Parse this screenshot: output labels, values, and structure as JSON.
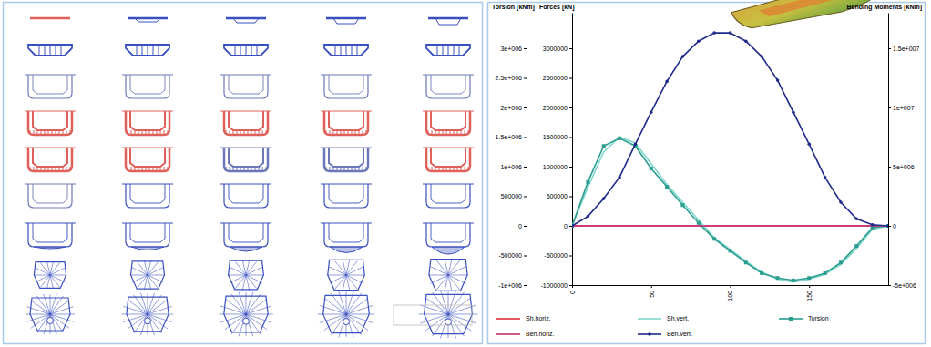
{
  "chart_data": {
    "type": "line",
    "y_label": "Torsion [kNm]",
    "y3_label": "Forces [kN]",
    "y2_label": "Bending Moments [kNm]",
    "x": [
      0,
      10,
      20,
      30,
      40,
      50,
      60,
      70,
      80,
      90,
      100,
      110,
      120,
      130,
      140,
      150,
      160,
      170,
      180,
      190,
      200
    ],
    "xlim": [
      0,
      200
    ],
    "xticks": [
      0,
      50,
      100,
      150
    ],
    "ylim": [
      -1000000,
      3600000
    ],
    "yticks": [
      {
        "value": -1000000,
        "label": "-1e+006"
      },
      -500000,
      0,
      500000,
      {
        "value": 1000000,
        "label": "1e+006"
      },
      {
        "value": 1500000,
        "label": "1.5e+006"
      },
      {
        "value": 2000000,
        "label": "2e+006"
      },
      {
        "value": 2500000,
        "label": "2.5e+006"
      },
      {
        "value": 3000000,
        "label": "3e+006"
      }
    ],
    "y3lim": [
      -1000000,
      3600000
    ],
    "y3ticks": [
      -1000000,
      -500000,
      0,
      500000,
      1000000,
      1500000,
      2000000,
      2500000,
      3000000
    ],
    "y2lim": [
      -5000000,
      18000000
    ],
    "y2ticks": [
      {
        "value": -5000000,
        "label": "-5e+006"
      },
      0,
      {
        "value": 5000000,
        "label": "5e+006"
      },
      {
        "value": 10000000,
        "label": "1e+007"
      },
      {
        "value": 15000000,
        "label": "1.5e+007"
      }
    ],
    "series": [
      {
        "name": "Sh.horiz.",
        "color": "#e0303a",
        "axis": "y3",
        "line_style": "solid",
        "values": [
          0,
          0,
          0,
          0,
          0,
          0,
          0,
          0,
          0,
          0,
          0,
          0,
          0,
          0,
          0,
          0,
          0,
          0,
          0,
          0,
          0
        ]
      },
      {
        "name": "Sh.vert.",
        "color": "#7fd6cc",
        "axis": "y3",
        "line_style": "solid",
        "values": [
          0,
          650000,
          1250000,
          1500000,
          1400000,
          1050000,
          700000,
          400000,
          100000,
          -200000,
          -400000,
          -600000,
          -780000,
          -900000,
          -950000,
          -900000,
          -820000,
          -650000,
          -380000,
          -60000,
          0
        ]
      },
      {
        "name": "Torsion",
        "color": "#2a9d8f",
        "line_style": "solid",
        "marker": "square",
        "values": [
          0,
          740000,
          1350000,
          1480000,
          1350000,
          970000,
          660000,
          350000,
          50000,
          -220000,
          -420000,
          -620000,
          -800000,
          -880000,
          -920000,
          -880000,
          -800000,
          -620000,
          -340000,
          -30000,
          0
        ]
      },
      {
        "name": "Ben.horiz.",
        "color": "#c2307a",
        "axis": "y2",
        "line_style": "solid",
        "values": [
          0,
          0,
          0,
          0,
          0,
          0,
          0,
          0,
          0,
          0,
          0,
          0,
          0,
          0,
          0,
          0,
          0,
          0,
          0,
          0,
          0
        ]
      },
      {
        "name": "Ben.vert.",
        "color": "#1f2a8a",
        "axis": "y2",
        "line_style": "solid",
        "marker": "circle",
        "values": [
          0,
          800000,
          2300000,
          4100000,
          6900000,
          9600000,
          12200000,
          14300000,
          15600000,
          16300000,
          16300000,
          15600000,
          14300000,
          12300000,
          9600000,
          6900000,
          4100000,
          2000000,
          600000,
          100000,
          0
        ]
      }
    ]
  }
}
